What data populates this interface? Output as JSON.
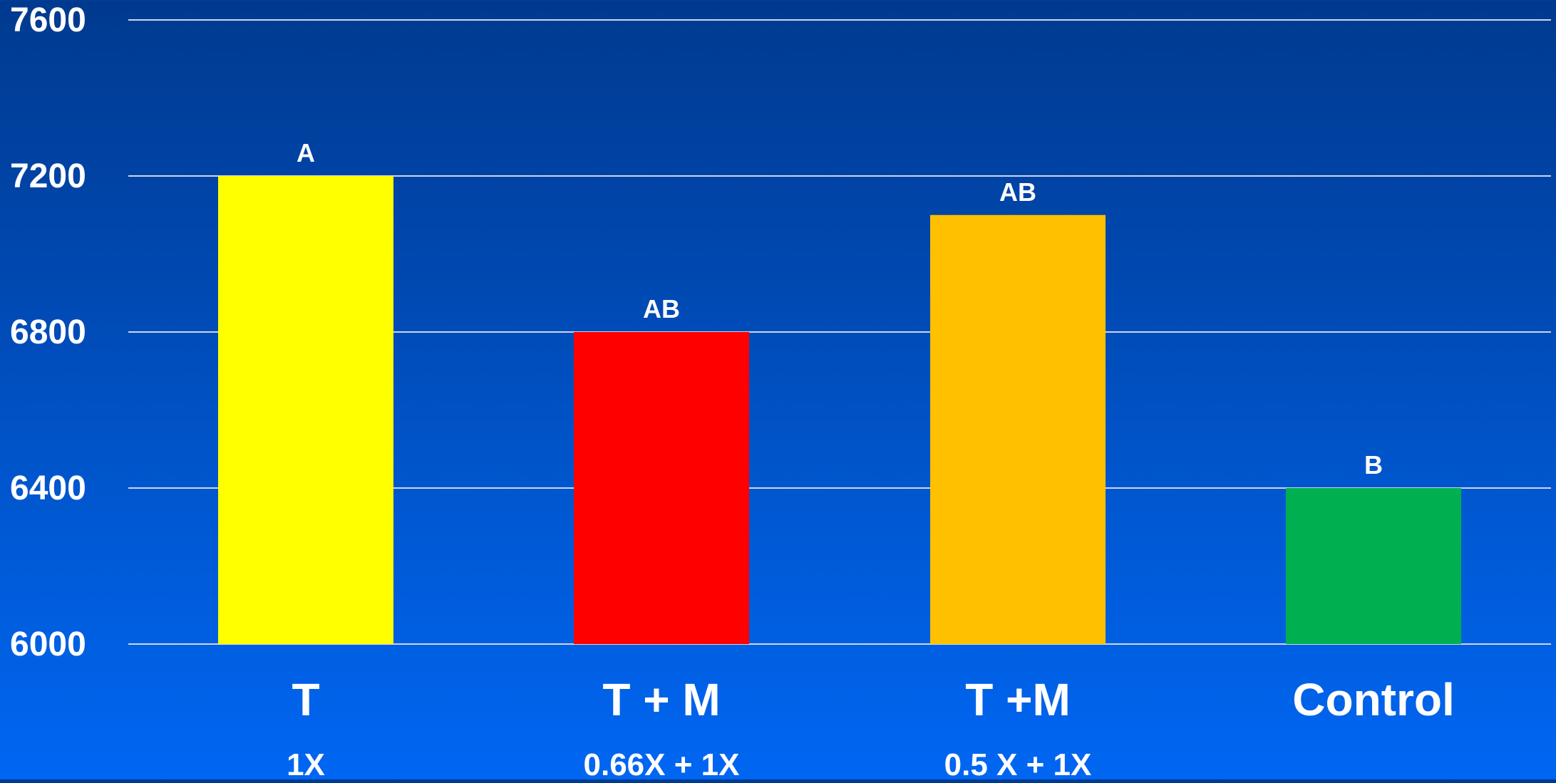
{
  "chart_data": {
    "type": "bar",
    "categories": [
      "T",
      "T + M",
      "T +M",
      "Control"
    ],
    "sublabels": [
      "1X",
      "0.66X + 1X",
      "0.5 X + 1X",
      ""
    ],
    "values": [
      7200,
      6800,
      7100,
      6400
    ],
    "letters": [
      "A",
      "AB",
      "AB",
      "B"
    ],
    "colors": [
      "#ffff00",
      "#ff0000",
      "#ffc000",
      "#00b050"
    ],
    "yticks": [
      6000,
      6400,
      6800,
      7200,
      7600
    ],
    "ylim": [
      6000,
      7600
    ],
    "grid": true,
    "title": "",
    "xlabel": "",
    "ylabel": ""
  }
}
